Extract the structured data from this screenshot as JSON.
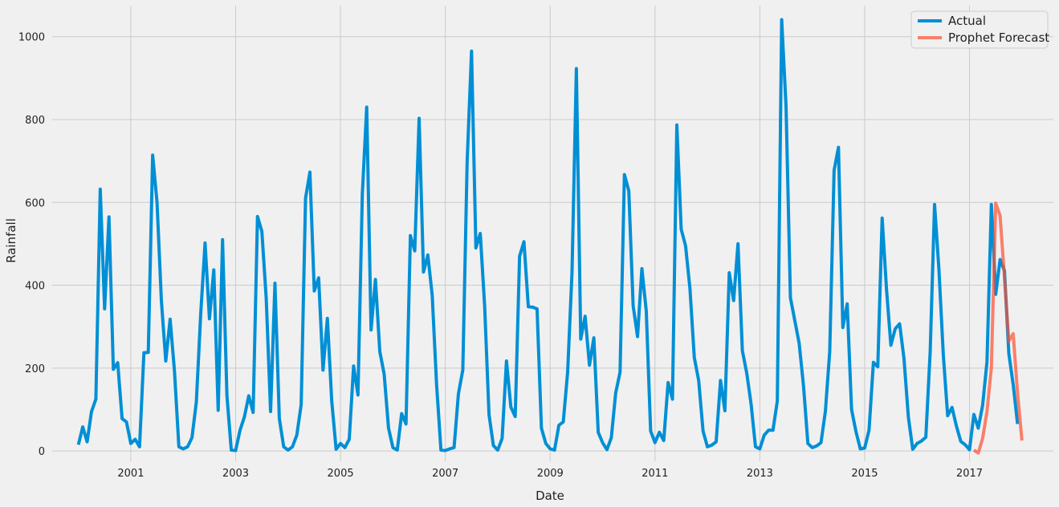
{
  "chart_data": {
    "type": "line",
    "xlabel": "Date",
    "ylabel": "Rainfall",
    "xlim": [
      1999.5,
      2018.6
    ],
    "ylim": [
      -25,
      1075
    ],
    "x_ticks": [
      {
        "value": 2001,
        "label": "2001"
      },
      {
        "value": 2003,
        "label": "2003"
      },
      {
        "value": 2005,
        "label": "2005"
      },
      {
        "value": 2007,
        "label": "2007"
      },
      {
        "value": 2009,
        "label": "2009"
      },
      {
        "value": 2011,
        "label": "2011"
      },
      {
        "value": 2013,
        "label": "2013"
      },
      {
        "value": 2015,
        "label": "2015"
      },
      {
        "value": 2017,
        "label": "2017"
      }
    ],
    "y_ticks": [
      {
        "value": 0,
        "label": "0"
      },
      {
        "value": 200,
        "label": "200"
      },
      {
        "value": 400,
        "label": "400"
      },
      {
        "value": 600,
        "label": "600"
      },
      {
        "value": 800,
        "label": "800"
      },
      {
        "value": 1000,
        "label": "1000"
      }
    ],
    "grid": true,
    "legend_position": "top-right",
    "series": [
      {
        "name": "Actual",
        "color": "#008fd5",
        "start_year": 2000,
        "values": [
          15,
          58,
          22,
          95,
          125,
          632,
          343,
          565,
          197,
          213,
          78,
          70,
          18,
          28,
          10,
          237,
          238,
          714,
          600,
          362,
          217,
          318,
          192,
          10,
          5,
          10,
          32,
          118,
          330,
          502,
          319,
          437,
          98,
          510,
          134,
          2,
          1,
          50,
          82,
          133,
          93,
          566,
          530,
          368,
          95,
          405,
          78,
          10,
          2,
          10,
          38,
          112,
          610,
          673,
          386,
          418,
          195,
          320,
          120,
          4,
          18,
          8,
          28,
          205,
          135,
          620,
          830,
          292,
          414,
          240,
          185,
          55,
          8,
          2,
          90,
          65,
          520,
          483,
          803,
          432,
          473,
          375,
          160,
          2,
          1,
          5,
          8,
          138,
          195,
          700,
          965,
          490,
          525,
          350,
          88,
          13,
          2,
          30,
          217,
          106,
          83,
          470,
          505,
          348,
          347,
          343,
          55,
          18,
          5,
          2,
          62,
          70,
          190,
          430,
          923,
          270,
          325,
          207,
          273,
          45,
          20,
          3,
          32,
          140,
          190,
          667,
          628,
          350,
          276,
          440,
          338,
          48,
          20,
          45,
          25,
          165,
          125,
          787,
          535,
          495,
          392,
          225,
          170,
          48,
          10,
          14,
          22,
          170,
          97,
          430,
          363,
          500,
          242,
          188,
          113,
          10,
          5,
          38,
          50,
          50,
          120,
          1041,
          832,
          370,
          315,
          260,
          157,
          18,
          8,
          12,
          20,
          95,
          240,
          677,
          733,
          298,
          355,
          100,
          47,
          5,
          7,
          50,
          214,
          203,
          562,
          390,
          255,
          295,
          307,
          223,
          82,
          4,
          18,
          24,
          33,
          240,
          595,
          438,
          232,
          85,
          105,
          60,
          23,
          15,
          3,
          88,
          55,
          110,
          215,
          595,
          378,
          462,
          435,
          235,
          160,
          65
        ]
      },
      {
        "name": "Prophet Forecast",
        "color": "#fc4f30",
        "opacity": 0.7,
        "start_year": 2017.0833,
        "values": [
          2,
          -5,
          30,
          95,
          200,
          598,
          568,
          420,
          265,
          283,
          140,
          25
        ]
      }
    ]
  }
}
